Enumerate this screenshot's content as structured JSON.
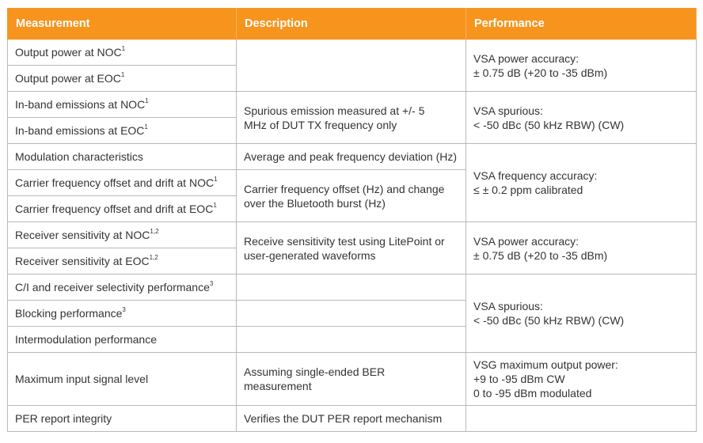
{
  "headers": {
    "measurement": "Measurement",
    "description": "Description",
    "performance": "Performance"
  },
  "rows": [
    {
      "measurement": "Output power at NOC",
      "sup": "1"
    },
    {
      "measurement": "Output power at EOC",
      "sup": "1"
    },
    {
      "measurement": "In-band emissions at NOC",
      "sup": "1"
    },
    {
      "measurement": "In-band emissions at EOC",
      "sup": "1"
    },
    {
      "measurement": "Modulation characteristics",
      "sup": ""
    },
    {
      "measurement": "Carrier frequency offset and drift at NOC",
      "sup": "1"
    },
    {
      "measurement": "Carrier frequency offset and drift at EOC",
      "sup": "1"
    },
    {
      "measurement": "Receiver sensitivity at NOC",
      "sup": "1,2"
    },
    {
      "measurement": "Receiver sensitivity at EOC",
      "sup": "1,2"
    },
    {
      "measurement": "C/I and receiver selectivity performance",
      "sup": "3"
    },
    {
      "measurement": "Blocking performance",
      "sup": "3"
    },
    {
      "measurement": "Intermodulation performance",
      "sup": ""
    },
    {
      "measurement": "Maximum input signal level",
      "sup": ""
    },
    {
      "measurement": "PER report integrity",
      "sup": ""
    }
  ],
  "descriptions": {
    "inband": [
      "Spurious emission measured at +/- 5",
      "MHz of DUT TX frequency only"
    ],
    "modulation": "Average and peak frequency deviation (Hz)",
    "carrier": [
      "Carrier frequency offset (Hz) and change",
      "over the Bluetooth burst (Hz)"
    ],
    "receiver": [
      "Receive sensitivity test using LitePoint or",
      "user-generated waveforms"
    ],
    "max_input": [
      "Assuming single-ended BER",
      "measurement"
    ],
    "per": "Verifies the DUT PER report mechanism"
  },
  "performance": {
    "output_power": [
      "VSA power accuracy:",
      "± 0.75 dB (+20 to -35 dBm)"
    ],
    "inband": [
      "VSA spurious:",
      "< -50 dBc (50 kHz RBW) (CW)"
    ],
    "frequency": [
      "VSA frequency accuracy:",
      "≤ ± 0.2 ppm calibrated"
    ],
    "receiver": [
      "VSA power accuracy:",
      "± 0.75 dB (+20 to -35 dBm)"
    ],
    "selectivity": [
      "VSA spurious:",
      "< -50 dBc (50 kHz RBW) (CW)"
    ],
    "max_input": [
      "VSG maximum output power:",
      "+9 to -95 dBm CW",
      "0 to -95 dBm modulated"
    ]
  },
  "colors": {
    "header_bg": "#f7941d",
    "border": "#b9b9b9"
  }
}
